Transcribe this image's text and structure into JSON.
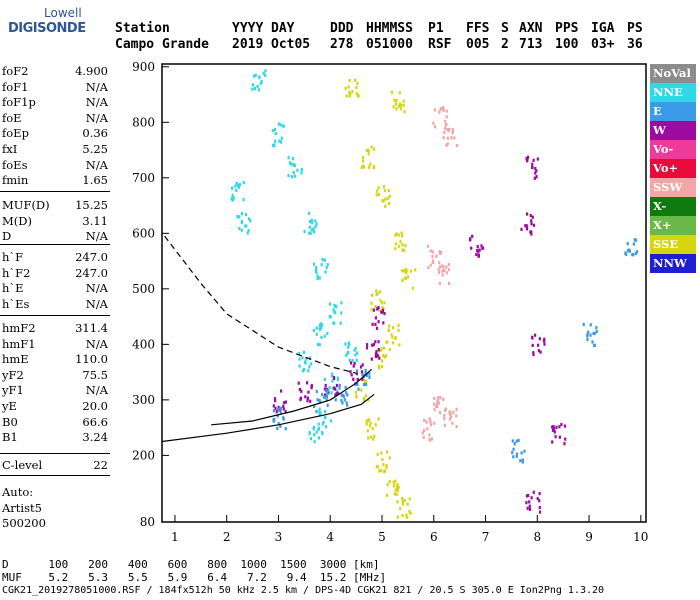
{
  "logo": {
    "line1": "Lowell",
    "line2": "DIGISONDE"
  },
  "header": {
    "row1": [
      {
        "id": "station",
        "text": "Station"
      },
      {
        "id": "yyyy",
        "text": "YYYY"
      },
      {
        "id": "day",
        "text": "DAY"
      },
      {
        "id": "ddd",
        "text": "DDD"
      },
      {
        "id": "hhmmss",
        "text": "HHMMSS"
      },
      {
        "id": "p1",
        "text": "P1"
      },
      {
        "id": "ffs",
        "text": "FFS"
      },
      {
        "id": "s",
        "text": "S"
      },
      {
        "id": "axn",
        "text": "AXN"
      },
      {
        "id": "pps",
        "text": "PPS"
      },
      {
        "id": "iga",
        "text": "IGA"
      },
      {
        "id": "ps",
        "text": "PS"
      }
    ],
    "row2": [
      {
        "id": "station",
        "text": "Campo Grande"
      },
      {
        "id": "yyyy",
        "text": "2019"
      },
      {
        "id": "day",
        "text": "Oct05"
      },
      {
        "id": "ddd",
        "text": "278"
      },
      {
        "id": "hhmmss",
        "text": "051000"
      },
      {
        "id": "p1",
        "text": "RSF"
      },
      {
        "id": "ffs",
        "text": "005"
      },
      {
        "id": "s",
        "text": "2"
      },
      {
        "id": "axn",
        "text": "713"
      },
      {
        "id": "pps",
        "text": "100"
      },
      {
        "id": "iga",
        "text": "03+"
      },
      {
        "id": "ps",
        "text": "36"
      }
    ]
  },
  "params": {
    "g1": [
      {
        "name": "foF2",
        "value": "4.900"
      },
      {
        "name": "foF1",
        "value": "N/A"
      },
      {
        "name": "foF1p",
        "value": "N/A"
      },
      {
        "name": "foE",
        "value": "N/A"
      },
      {
        "name": "foEp",
        "value": "0.36"
      },
      {
        "name": "fxI",
        "value": "5.25"
      },
      {
        "name": "foEs",
        "value": "N/A"
      },
      {
        "name": "fmin",
        "value": "1.65"
      }
    ],
    "g2": [
      {
        "name": "MUF(D)",
        "value": "15.25"
      },
      {
        "name": "M(D)",
        "value": "3.11"
      },
      {
        "name": "D",
        "value": "N/A"
      }
    ],
    "g3": [
      {
        "name": "h`F",
        "value": "247.0"
      },
      {
        "name": "h`F2",
        "value": "247.0"
      },
      {
        "name": "h`E",
        "value": "N/A"
      },
      {
        "name": "h`Es",
        "value": "N/A"
      }
    ],
    "g4": [
      {
        "name": "hmF2",
        "value": "311.4"
      },
      {
        "name": "hmF1",
        "value": "N/A"
      },
      {
        "name": "hmE",
        "value": "110.0"
      },
      {
        "name": "yF2",
        "value": "75.5"
      },
      {
        "name": "yF1",
        "value": "N/A"
      },
      {
        "name": "yE",
        "value": "20.0"
      },
      {
        "name": "B0",
        "value": "66.6"
      },
      {
        "name": "B1",
        "value": "3.24"
      }
    ],
    "g5": [
      {
        "name": "C-level",
        "value": "22"
      }
    ],
    "g6": [
      "Auto:",
      "Artist5",
      "500200"
    ]
  },
  "legend": [
    {
      "label": "NoVal",
      "color": "#8c8c8c"
    },
    {
      "label": "NNE",
      "color": "#2ed8e6"
    },
    {
      "label": "E",
      "color": "#3a9ae8"
    },
    {
      "label": "W",
      "color": "#9c0aa0"
    },
    {
      "label": "Vo-",
      "color": "#ee3a9a"
    },
    {
      "label": "Vo+",
      "color": "#e80a3a"
    },
    {
      "label": "SSW",
      "color": "#f2a6a6"
    },
    {
      "label": "X-",
      "color": "#0e7a0e"
    },
    {
      "label": "X+",
      "color": "#6ab84a"
    },
    {
      "label": "SSE",
      "color": "#d6d610"
    },
    {
      "label": "NNW",
      "color": "#1e1ed2"
    }
  ],
  "footer": {
    "d_row": "D      100   200   400   600   800  1000  1500  3000 [km]",
    "muf_row": "MUF    5.2   5.3   5.5   5.9   6.4   7.2   9.4  15.2 [MHz]",
    "info": "CGK21_2019278051000.RSF / 184fx512h 50 kHz 2.5 km / DPS-4D CGK21 821 / 20.5 S 305.0 E Ion2Png 1.3.20"
  },
  "chart_data": {
    "type": "scatter",
    "title": "",
    "xlabel": "",
    "ylabel": "",
    "xlim": [
      0.75,
      10.1
    ],
    "ylim": [
      80,
      905
    ],
    "x_ticks": [
      1,
      2,
      3,
      4,
      5,
      6,
      7,
      8,
      9,
      10
    ],
    "y_ticks": [
      80,
      200,
      300,
      400,
      500,
      600,
      700,
      800,
      900
    ],
    "grid": false,
    "legend_position": "right",
    "series": [
      {
        "name": "NNE",
        "color": "#2ed8e6",
        "points": [
          [
            2.2,
            680
          ],
          [
            2.3,
            620
          ],
          [
            2.6,
            880
          ],
          [
            3.0,
            780
          ],
          [
            3.3,
            720
          ],
          [
            3.6,
            620
          ],
          [
            3.8,
            540
          ],
          [
            4.1,
            460
          ],
          [
            4.4,
            390
          ],
          [
            3.5,
            370
          ],
          [
            3.8,
            420
          ],
          [
            4.0,
            330
          ],
          [
            3.9,
            270
          ],
          [
            3.7,
            240
          ]
        ]
      },
      {
        "name": "SSE",
        "color": "#d6d610",
        "points": [
          [
            4.4,
            860
          ],
          [
            4.7,
            740
          ],
          [
            5.0,
            670
          ],
          [
            5.3,
            590
          ],
          [
            5.5,
            520
          ],
          [
            5.3,
            840
          ],
          [
            4.6,
            320
          ],
          [
            4.8,
            250
          ],
          [
            5.0,
            190
          ],
          [
            5.2,
            140
          ],
          [
            5.4,
            110
          ],
          [
            5.0,
            380
          ],
          [
            5.2,
            420
          ],
          [
            4.9,
            480
          ]
        ]
      },
      {
        "name": "W",
        "color": "#9c0aa0",
        "points": [
          [
            3.0,
            300
          ],
          [
            3.5,
            320
          ],
          [
            4.0,
            330
          ],
          [
            4.5,
            350
          ],
          [
            4.8,
            390
          ],
          [
            4.9,
            450
          ],
          [
            8.0,
            400
          ],
          [
            7.9,
            720
          ],
          [
            7.8,
            620
          ],
          [
            6.8,
            580
          ],
          [
            7.9,
            120
          ],
          [
            8.4,
            240
          ]
        ]
      },
      {
        "name": "SSW",
        "color": "#f2a6a6",
        "points": [
          [
            6.1,
            810
          ],
          [
            6.3,
            780
          ],
          [
            6.0,
            560
          ],
          [
            6.2,
            530
          ],
          [
            6.1,
            290
          ],
          [
            6.3,
            270
          ],
          [
            5.9,
            250
          ]
        ]
      },
      {
        "name": "E",
        "color": "#3a9ae8",
        "points": [
          [
            3.0,
            270
          ],
          [
            3.8,
            300
          ],
          [
            4.2,
            310
          ],
          [
            4.6,
            340
          ],
          [
            7.6,
            210
          ],
          [
            9.0,
            420
          ],
          [
            9.8,
            580
          ]
        ]
      }
    ],
    "curves": [
      {
        "name": "",
        "style": "solid",
        "points": [
          [
            0.75,
            225
          ],
          [
            2.0,
            240
          ],
          [
            3.0,
            255
          ],
          [
            4.0,
            275
          ],
          [
            4.6,
            292
          ],
          [
            4.85,
            310
          ]
        ]
      },
      {
        "name": "",
        "style": "dashed",
        "points": [
          [
            0.8,
            595
          ],
          [
            1.5,
            510
          ],
          [
            2.0,
            455
          ],
          [
            3.0,
            395
          ],
          [
            4.0,
            360
          ],
          [
            4.5,
            348
          ]
        ]
      },
      {
        "name": "",
        "style": "solid",
        "points": [
          [
            1.7,
            255
          ],
          [
            2.5,
            262
          ],
          [
            3.3,
            280
          ],
          [
            4.0,
            300
          ],
          [
            4.5,
            330
          ],
          [
            4.8,
            355
          ]
        ]
      }
    ]
  }
}
